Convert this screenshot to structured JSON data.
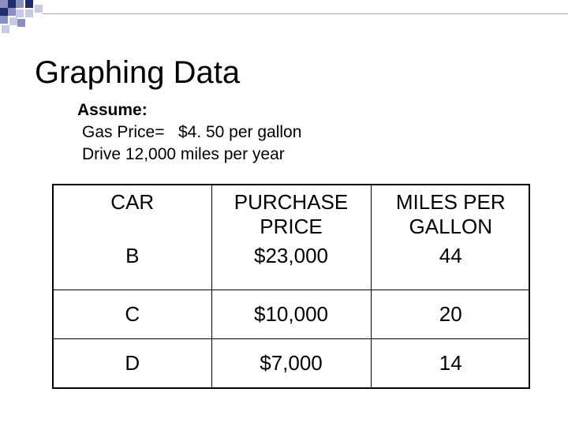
{
  "slide": {
    "title": "Graphing Data",
    "assume": {
      "heading": "Assume:",
      "lines": [
        "Gas Price=   $4. 50 per gallon",
        "Drive 12,000 miles per year"
      ]
    }
  },
  "table": {
    "headers": {
      "car": "CAR",
      "price": "PURCHASE PRICE",
      "mpg": "MILES PER GALLON"
    },
    "rows": [
      {
        "car": "B",
        "price": "$23,000",
        "mpg": "44"
      },
      {
        "car": "C",
        "price": "$10,000",
        "mpg": "20"
      },
      {
        "car": "D",
        "price": "$7,000",
        "mpg": "14"
      }
    ]
  },
  "decor": {
    "checker_colors": [
      "#1f2b6b",
      "#8a8fc2",
      "#c7cbe6"
    ],
    "rule_color": "#a9a9a9"
  }
}
